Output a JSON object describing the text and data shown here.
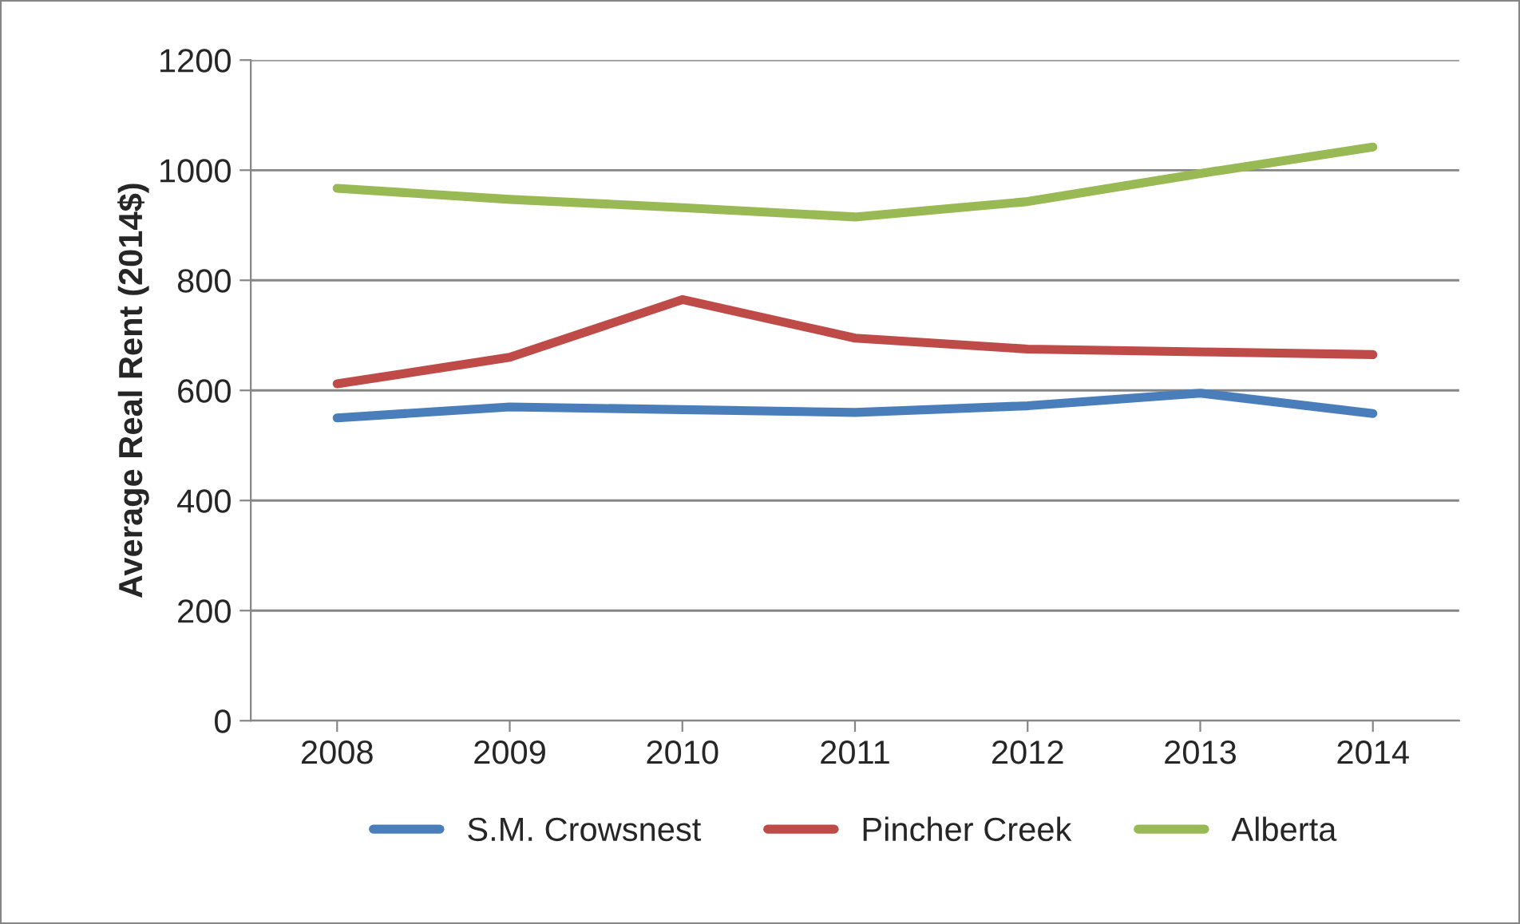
{
  "chart_data": {
    "type": "line",
    "ylabel": "Average Real Rent (2014$)",
    "categories": [
      "2008",
      "2009",
      "2010",
      "2011",
      "2012",
      "2013",
      "2014"
    ],
    "series": [
      {
        "name": "S.M. Crowsnest",
        "color": "#4a7ebb",
        "values": [
          550,
          570,
          565,
          560,
          572,
          595,
          558
        ]
      },
      {
        "name": "Pincher Creek",
        "color": "#be4b48",
        "values": [
          612,
          660,
          765,
          695,
          675,
          670,
          665
        ]
      },
      {
        "name": "Alberta",
        "color": "#98b954",
        "values": [
          967,
          947,
          932,
          915,
          943,
          994,
          1042
        ]
      }
    ],
    "ylim": [
      0,
      1200
    ],
    "yticks": [
      0,
      200,
      400,
      600,
      800,
      1000,
      1200
    ],
    "grid": "y",
    "legend": "bottom",
    "marker": "none",
    "line_style": "solid"
  }
}
